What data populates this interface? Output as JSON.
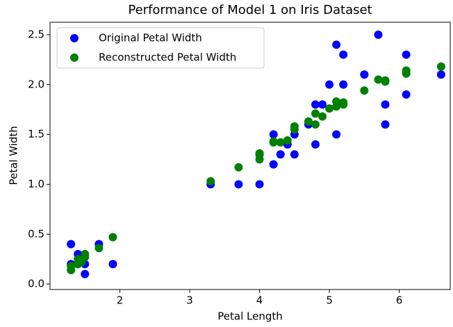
{
  "chart_data": {
    "type": "scatter",
    "title": "Performance of Model 1 on Iris Dataset",
    "x_label": "Petal Length",
    "y_label": "Petal Width",
    "xlim": [
      1.0,
      6.73
    ],
    "ylim": [
      -0.055,
      2.625
    ],
    "xticks": [
      2,
      3,
      4,
      5,
      6
    ],
    "yticks": [
      {
        "value": 0,
        "label": "0.0"
      },
      0.5,
      {
        "value": 1,
        "label": "1.0"
      },
      1.5,
      {
        "value": 2,
        "label": "2.0"
      },
      2.5
    ],
    "legend": "upper left",
    "series": [
      {
        "name": "Original Petal Width",
        "color": "#0000ff",
        "x": [
          1.3,
          1.3,
          1.4,
          1.4,
          1.5,
          1.5,
          1.5,
          1.7,
          1.9,
          3.3,
          3.7,
          4.0,
          4.0,
          4.2,
          4.2,
          4.3,
          4.4,
          4.5,
          4.5,
          4.7,
          4.8,
          4.8,
          4.9,
          5.0,
          5.1,
          5.1,
          5.2,
          5.2,
          5.5,
          5.7,
          5.8,
          5.8,
          6.1,
          6.1,
          6.6
        ],
        "y": [
          0.4,
          0.2,
          0.3,
          0.2,
          0.2,
          0.1,
          0.3,
          0.4,
          0.2,
          1.0,
          1.0,
          1.0,
          1.3,
          1.5,
          1.2,
          1.3,
          1.4,
          1.5,
          1.3,
          1.6,
          1.8,
          1.4,
          1.8,
          2.0,
          2.4,
          1.5,
          2.3,
          2.0,
          2.1,
          2.5,
          1.8,
          1.6,
          2.3,
          1.9,
          2.1
        ]
      },
      {
        "name": "Reconstructed Petal Width",
        "color": "#008000",
        "x": [
          1.3,
          1.3,
          1.4,
          1.4,
          1.5,
          1.5,
          1.45,
          1.7,
          1.9,
          3.3,
          3.7,
          4.0,
          4.0,
          4.2,
          4.2,
          4.3,
          4.4,
          4.5,
          4.5,
          4.7,
          4.8,
          4.8,
          4.9,
          5.0,
          5.1,
          5.1,
          5.2,
          5.2,
          5.5,
          5.7,
          5.8,
          5.8,
          6.1,
          6.1,
          6.6
        ],
        "y": [
          0.18,
          0.14,
          0.2,
          0.25,
          0.27,
          0.3,
          0.22,
          0.36,
          0.47,
          1.03,
          1.17,
          1.25,
          1.31,
          1.42,
          1.43,
          1.42,
          1.44,
          1.55,
          1.58,
          1.63,
          1.6,
          1.71,
          1.68,
          1.76,
          1.78,
          1.83,
          1.8,
          1.82,
          1.94,
          2.05,
          2.03,
          2.04,
          2.11,
          2.14,
          2.18
        ]
      }
    ]
  }
}
